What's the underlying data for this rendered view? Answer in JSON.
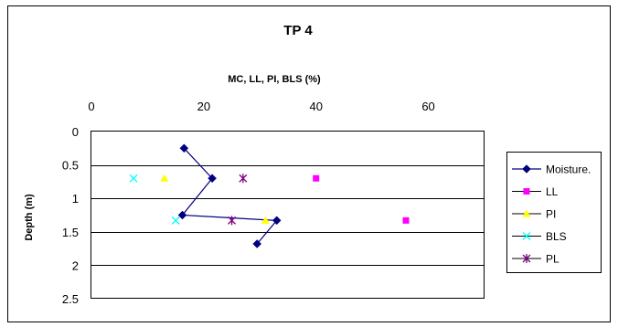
{
  "chart_data": {
    "type": "scatter",
    "title": "TP 4",
    "xlabel": "MC, LL, PI, BLS (%)",
    "ylabel": "Depth (m)",
    "xlim": [
      0,
      70
    ],
    "ylim": [
      0,
      2.5
    ],
    "y_inverted": true,
    "x_axis_position": "top",
    "x_ticks": [
      "0",
      "20",
      "40",
      "60"
    ],
    "x_tick_values": [
      0,
      20,
      40,
      60
    ],
    "y_ticks": [
      "0",
      "0.5",
      "1",
      "1.5",
      "2",
      "2.5"
    ],
    "y_tick_values": [
      0,
      0.5,
      1,
      1.5,
      2,
      2.5
    ],
    "grid": "horizontal",
    "legend_position": "right",
    "series": [
      {
        "name": "Moisture.",
        "marker": "diamond",
        "color": "#000080",
        "line": true,
        "x": [
          16.5,
          21.5,
          16.2,
          33,
          29.5
        ],
        "y": [
          0.25,
          0.7,
          1.25,
          1.33,
          1.68
        ]
      },
      {
        "name": "LL",
        "marker": "square",
        "color": "#FF00FF",
        "line": false,
        "x": [
          40,
          56
        ],
        "y": [
          0.7,
          1.33
        ]
      },
      {
        "name": "PI",
        "marker": "triangle",
        "color": "#FFFF00",
        "line": false,
        "x": [
          13,
          31
        ],
        "y": [
          0.7,
          1.33
        ]
      },
      {
        "name": "BLS",
        "marker": "x",
        "color": "#00FFFF",
        "line": false,
        "x": [
          7.5,
          15
        ],
        "y": [
          0.7,
          1.33
        ]
      },
      {
        "name": "PL",
        "marker": "star",
        "color": "#800080",
        "line": false,
        "x": [
          27,
          25
        ],
        "y": [
          0.7,
          1.33
        ]
      }
    ]
  }
}
